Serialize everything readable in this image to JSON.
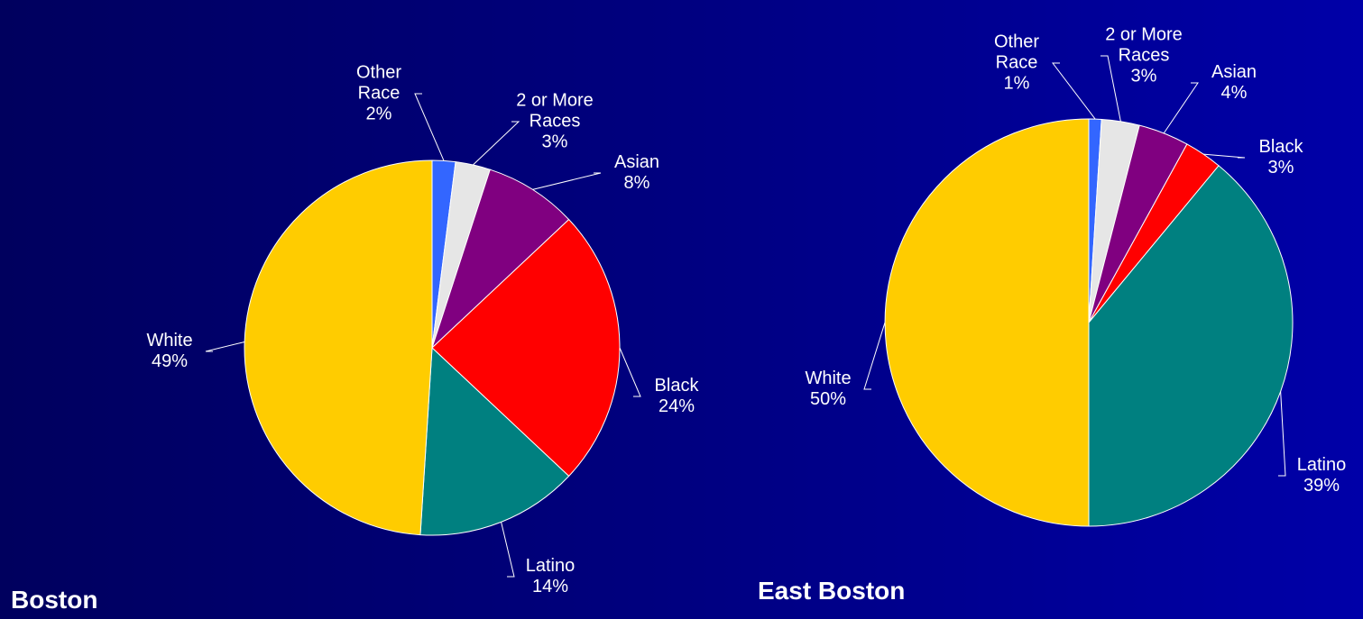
{
  "chart_data": [
    {
      "type": "pie",
      "title": "Boston",
      "categories": [
        "Other Race",
        "2 or More Races",
        "Asian",
        "Black",
        "Latino",
        "White"
      ],
      "values": [
        2,
        3,
        8,
        24,
        14,
        49
      ],
      "value_labels": [
        "2%",
        "3%",
        "8%",
        "24%",
        "14%",
        "49%"
      ],
      "colors": [
        "#3366ff",
        "#e6e6e6",
        "#800080",
        "#ff0000",
        "#008080",
        "#ffcc00"
      ]
    },
    {
      "type": "pie",
      "title": "East Boston",
      "categories": [
        "Other Race",
        "2 or More Races",
        "Asian",
        "Black",
        "Latino",
        "White"
      ],
      "values": [
        1,
        3,
        4,
        3,
        39,
        50
      ],
      "value_labels": [
        "1%",
        "3%",
        "4%",
        "3%",
        "39%",
        "50%"
      ],
      "colors": [
        "#3366ff",
        "#e6e6e6",
        "#800080",
        "#ff0000",
        "#008080",
        "#ffcc00"
      ]
    }
  ]
}
